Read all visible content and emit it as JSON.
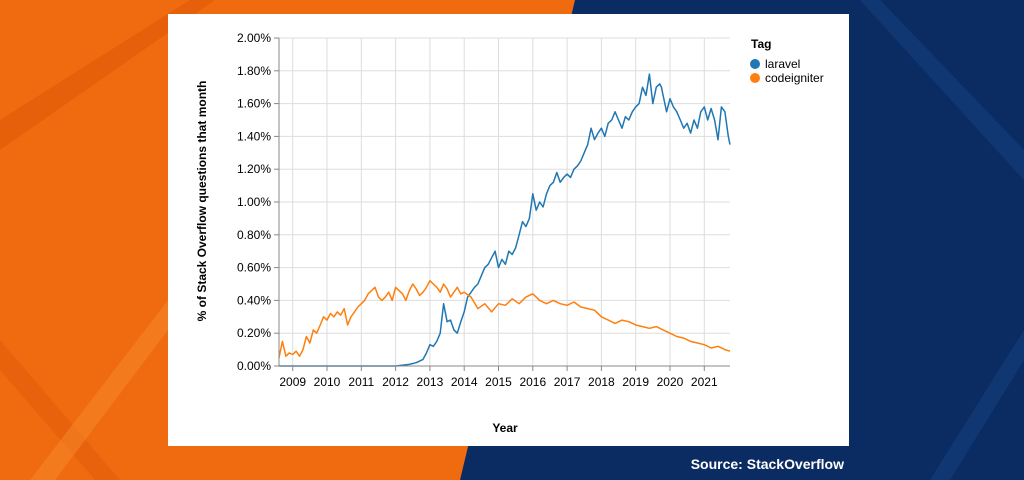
{
  "colors": {
    "orange_bg": "#f06a10",
    "navy_bg": "#0b2c63",
    "laravel": "#1f77b4",
    "codeigniter": "#ff7f0e"
  },
  "footer": {
    "source": "Source: StackOverflow"
  },
  "chart_data": {
    "type": "line",
    "xlabel": "Year",
    "ylabel": "% of Stack Overflow questions that month",
    "xlim": [
      2008.6,
      2021.75
    ],
    "ylim": [
      0,
      2.0
    ],
    "xticks": [
      "2009",
      "2010",
      "2011",
      "2012",
      "2013",
      "2014",
      "2015",
      "2016",
      "2017",
      "2018",
      "2019",
      "2020",
      "2021"
    ],
    "yticks": [
      "0.00%",
      "0.20%",
      "0.40%",
      "0.60%",
      "0.80%",
      "1.00%",
      "1.20%",
      "1.40%",
      "1.60%",
      "1.80%",
      "2.00%"
    ],
    "grid": true,
    "legend": {
      "title": "Tag",
      "position": "top-right"
    },
    "series": [
      {
        "name": "laravel",
        "color": "#1f77b4",
        "x": [
          2008.6,
          2010.0,
          2011.0,
          2012.0,
          2012.4,
          2012.6,
          2012.8,
          2012.9,
          2013.0,
          2013.1,
          2013.2,
          2013.3,
          2013.4,
          2013.5,
          2013.6,
          2013.7,
          2013.8,
          2013.9,
          2014.0,
          2014.1,
          2014.2,
          2014.3,
          2014.4,
          2014.5,
          2014.6,
          2014.7,
          2014.8,
          2014.9,
          2015.0,
          2015.1,
          2015.2,
          2015.3,
          2015.4,
          2015.5,
          2015.6,
          2015.7,
          2015.8,
          2015.9,
          2016.0,
          2016.1,
          2016.2,
          2016.3,
          2016.4,
          2016.5,
          2016.6,
          2016.7,
          2016.8,
          2016.9,
          2017.0,
          2017.1,
          2017.2,
          2017.3,
          2017.4,
          2017.5,
          2017.6,
          2017.7,
          2017.8,
          2017.9,
          2018.0,
          2018.1,
          2018.2,
          2018.3,
          2018.4,
          2018.5,
          2018.6,
          2018.7,
          2018.8,
          2018.9,
          2019.0,
          2019.1,
          2019.2,
          2019.3,
          2019.4,
          2019.5,
          2019.6,
          2019.7,
          2019.75,
          2019.8,
          2019.9,
          2020.0,
          2020.1,
          2020.2,
          2020.3,
          2020.4,
          2020.5,
          2020.6,
          2020.7,
          2020.8,
          2020.9,
          2021.0,
          2021.1,
          2021.2,
          2021.3,
          2021.4,
          2021.5,
          2021.6,
          2021.7,
          2021.75
        ],
        "values": [
          0.0,
          0.0,
          0.0,
          0.0,
          0.01,
          0.02,
          0.04,
          0.08,
          0.13,
          0.12,
          0.15,
          0.2,
          0.38,
          0.27,
          0.28,
          0.22,
          0.2,
          0.27,
          0.33,
          0.42,
          0.45,
          0.48,
          0.5,
          0.55,
          0.6,
          0.62,
          0.66,
          0.7,
          0.6,
          0.65,
          0.62,
          0.7,
          0.68,
          0.72,
          0.8,
          0.88,
          0.85,
          0.9,
          1.05,
          0.95,
          1.0,
          0.97,
          1.05,
          1.1,
          1.12,
          1.18,
          1.12,
          1.15,
          1.17,
          1.15,
          1.2,
          1.22,
          1.25,
          1.3,
          1.35,
          1.45,
          1.38,
          1.42,
          1.45,
          1.4,
          1.48,
          1.5,
          1.55,
          1.5,
          1.45,
          1.52,
          1.5,
          1.55,
          1.58,
          1.6,
          1.7,
          1.65,
          1.78,
          1.6,
          1.7,
          1.72,
          1.7,
          1.65,
          1.55,
          1.63,
          1.58,
          1.55,
          1.5,
          1.45,
          1.48,
          1.42,
          1.5,
          1.45,
          1.55,
          1.58,
          1.5,
          1.57,
          1.5,
          1.38,
          1.58,
          1.55,
          1.4,
          1.35
        ]
      },
      {
        "name": "codeigniter",
        "color": "#ff7f0e",
        "x": [
          2008.6,
          2008.7,
          2008.8,
          2008.9,
          2009.0,
          2009.1,
          2009.2,
          2009.3,
          2009.4,
          2009.5,
          2009.6,
          2009.7,
          2009.8,
          2009.9,
          2010.0,
          2010.1,
          2010.2,
          2010.3,
          2010.4,
          2010.5,
          2010.6,
          2010.7,
          2010.8,
          2010.9,
          2011.0,
          2011.1,
          2011.2,
          2011.3,
          2011.4,
          2011.5,
          2011.6,
          2011.7,
          2011.8,
          2011.9,
          2012.0,
          2012.1,
          2012.2,
          2012.3,
          2012.4,
          2012.5,
          2012.6,
          2012.7,
          2012.8,
          2012.9,
          2013.0,
          2013.1,
          2013.2,
          2013.3,
          2013.4,
          2013.5,
          2013.6,
          2013.7,
          2013.8,
          2013.9,
          2014.0,
          2014.2,
          2014.4,
          2014.6,
          2014.8,
          2015.0,
          2015.2,
          2015.4,
          2015.6,
          2015.8,
          2016.0,
          2016.2,
          2016.4,
          2016.6,
          2016.8,
          2017.0,
          2017.2,
          2017.4,
          2017.6,
          2017.8,
          2018.0,
          2018.2,
          2018.4,
          2018.6,
          2018.8,
          2019.0,
          2019.2,
          2019.4,
          2019.6,
          2019.8,
          2020.0,
          2020.2,
          2020.4,
          2020.6,
          2020.8,
          2021.0,
          2021.2,
          2021.4,
          2021.6,
          2021.75
        ],
        "values": [
          0.05,
          0.15,
          0.06,
          0.08,
          0.07,
          0.09,
          0.06,
          0.1,
          0.18,
          0.14,
          0.22,
          0.2,
          0.25,
          0.3,
          0.28,
          0.32,
          0.3,
          0.33,
          0.31,
          0.35,
          0.25,
          0.3,
          0.33,
          0.36,
          0.38,
          0.4,
          0.44,
          0.46,
          0.48,
          0.42,
          0.4,
          0.42,
          0.45,
          0.4,
          0.48,
          0.46,
          0.44,
          0.4,
          0.46,
          0.5,
          0.47,
          0.43,
          0.45,
          0.48,
          0.52,
          0.5,
          0.48,
          0.45,
          0.5,
          0.47,
          0.42,
          0.45,
          0.48,
          0.44,
          0.45,
          0.42,
          0.35,
          0.38,
          0.33,
          0.38,
          0.37,
          0.41,
          0.38,
          0.42,
          0.44,
          0.4,
          0.38,
          0.4,
          0.38,
          0.37,
          0.39,
          0.36,
          0.35,
          0.34,
          0.3,
          0.28,
          0.26,
          0.28,
          0.27,
          0.25,
          0.24,
          0.23,
          0.24,
          0.22,
          0.2,
          0.18,
          0.17,
          0.15,
          0.14,
          0.13,
          0.11,
          0.12,
          0.1,
          0.09
        ]
      }
    ]
  }
}
